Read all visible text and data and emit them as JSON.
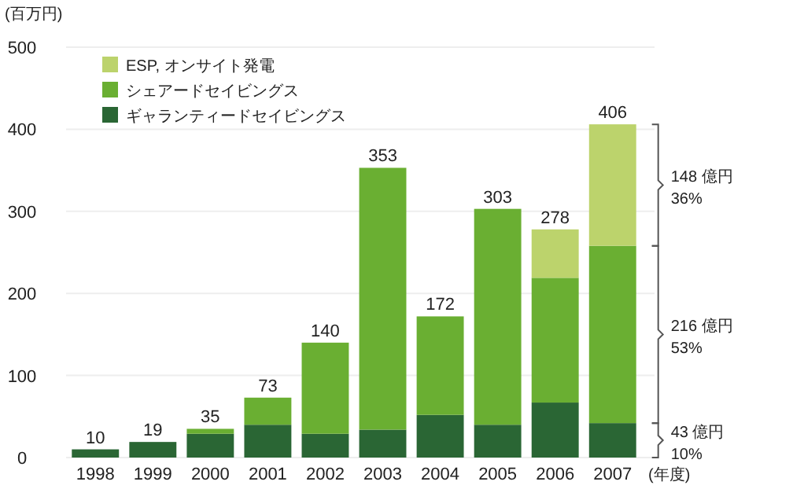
{
  "chart_data": {
    "type": "bar",
    "stacked": true,
    "categories": [
      "1998",
      "1999",
      "2000",
      "2001",
      "2002",
      "2003",
      "2004",
      "2005",
      "2006",
      "2007"
    ],
    "series": [
      {
        "name": "ギャランティードセイビングス",
        "color": "#2a6634",
        "values": [
          10,
          19,
          29,
          40,
          29,
          34,
          52,
          40,
          67,
          42
        ]
      },
      {
        "name": "シェアードセイビングス",
        "color": "#6aaf32",
        "values": [
          0,
          0,
          6,
          33,
          111,
          319,
          120,
          263,
          152,
          216
        ]
      },
      {
        "name": "ESP, オンサイト発電",
        "color": "#bcd36c",
        "values": [
          0,
          0,
          0,
          0,
          0,
          0,
          0,
          0,
          59,
          148
        ]
      }
    ],
    "totals": [
      "10",
      "19",
      "35",
      "73",
      "140",
      "353",
      "172",
      "303",
      "278",
      "406"
    ],
    "ylim": [
      0,
      500
    ],
    "yticks": [
      0,
      100,
      200,
      300,
      400,
      500
    ],
    "grid": "y",
    "legend": "top left",
    "ylabel": "(百万円)",
    "xlabel": "(年度)",
    "annotations": [
      "43 億円",
      "10%",
      "216 億円",
      "53%",
      "148 億円",
      "36%"
    ]
  }
}
